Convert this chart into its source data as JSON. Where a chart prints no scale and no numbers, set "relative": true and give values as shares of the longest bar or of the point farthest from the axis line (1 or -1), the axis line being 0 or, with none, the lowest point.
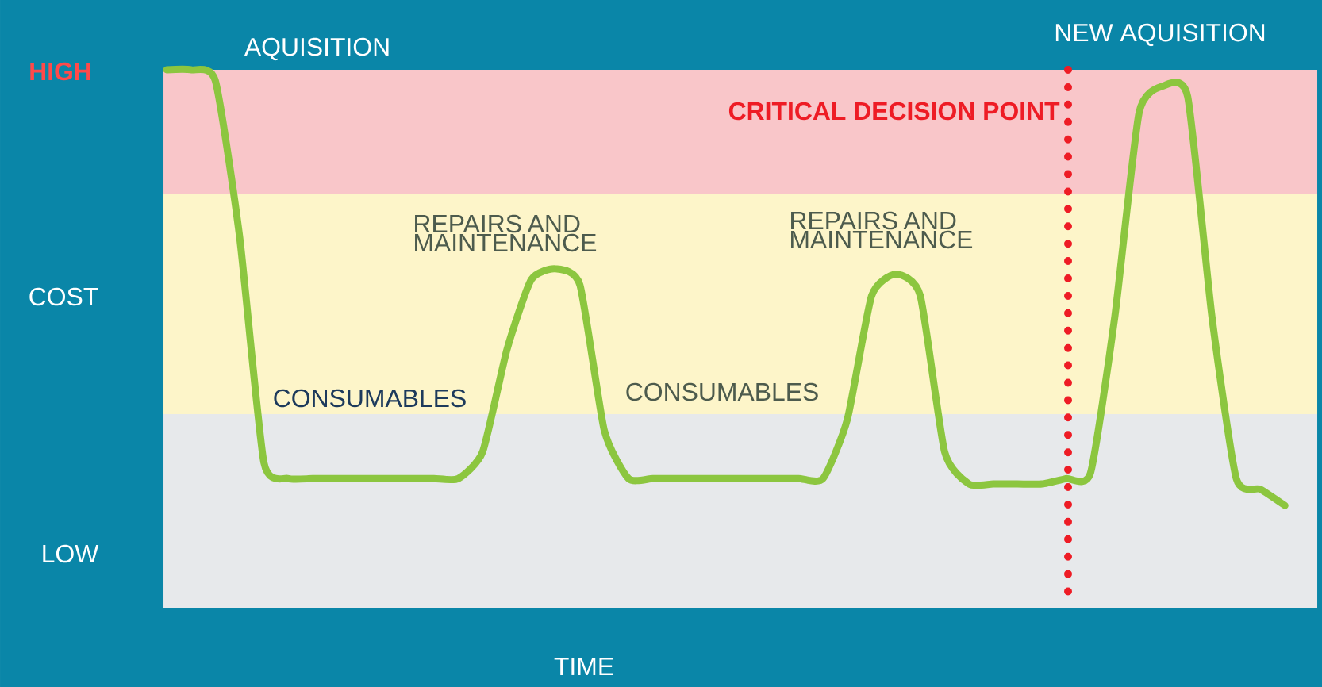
{
  "chart_data": {
    "type": "line",
    "relative": true,
    "ylabel": "COST",
    "categories": [
      null,
      null,
      null,
      null,
      null,
      null,
      null,
      null,
      null,
      null,
      null,
      null,
      null,
      null,
      null,
      null,
      null,
      null,
      null,
      null,
      null,
      null,
      null,
      null,
      null,
      null,
      null,
      null,
      null,
      null,
      null,
      null,
      null,
      null,
      null,
      null,
      null,
      null,
      null,
      null,
      null,
      null,
      null,
      null,
      null,
      null,
      null
    ],
    "values": [
      1.0,
      1.0,
      0.98,
      0.69,
      0.27,
      0.24,
      0.24,
      0.24,
      0.24,
      0.24,
      0.24,
      0.24,
      0.24,
      0.29,
      0.48,
      0.61,
      0.63,
      0.6,
      0.33,
      0.24,
      0.24,
      0.24,
      0.24,
      0.24,
      0.24,
      0.24,
      0.24,
      0.24,
      0.35,
      0.58,
      0.62,
      0.58,
      0.29,
      0.23,
      0.23,
      0.23,
      0.23,
      0.24,
      0.25,
      0.54,
      0.92,
      0.97,
      0.95,
      0.54,
      0.24,
      0.22,
      0.19
    ],
    "color": "#8cc63f",
    "bands": [
      {
        "axis": "y",
        "from": 0.77,
        "to": 1.0,
        "color": "#f9c6c9"
      },
      {
        "axis": "y",
        "from": 0.36,
        "to": 0.77,
        "color": "#fdf5c9"
      },
      {
        "axis": "y",
        "from": 0,
        "to": 0.36,
        "color": "#e7e9eb"
      }
    ],
    "annotations": [
      "AQUISITION",
      "REPAIRS AND MAINTENANCE",
      "CONSUMABLES",
      "CONSUMABLES",
      "REPAIRS AND MAINTENANCE",
      "NEW AQUISITION",
      "HIGH",
      "LOW",
      "CRITICAL DECISION POINT",
      "TIME"
    ]
  }
}
